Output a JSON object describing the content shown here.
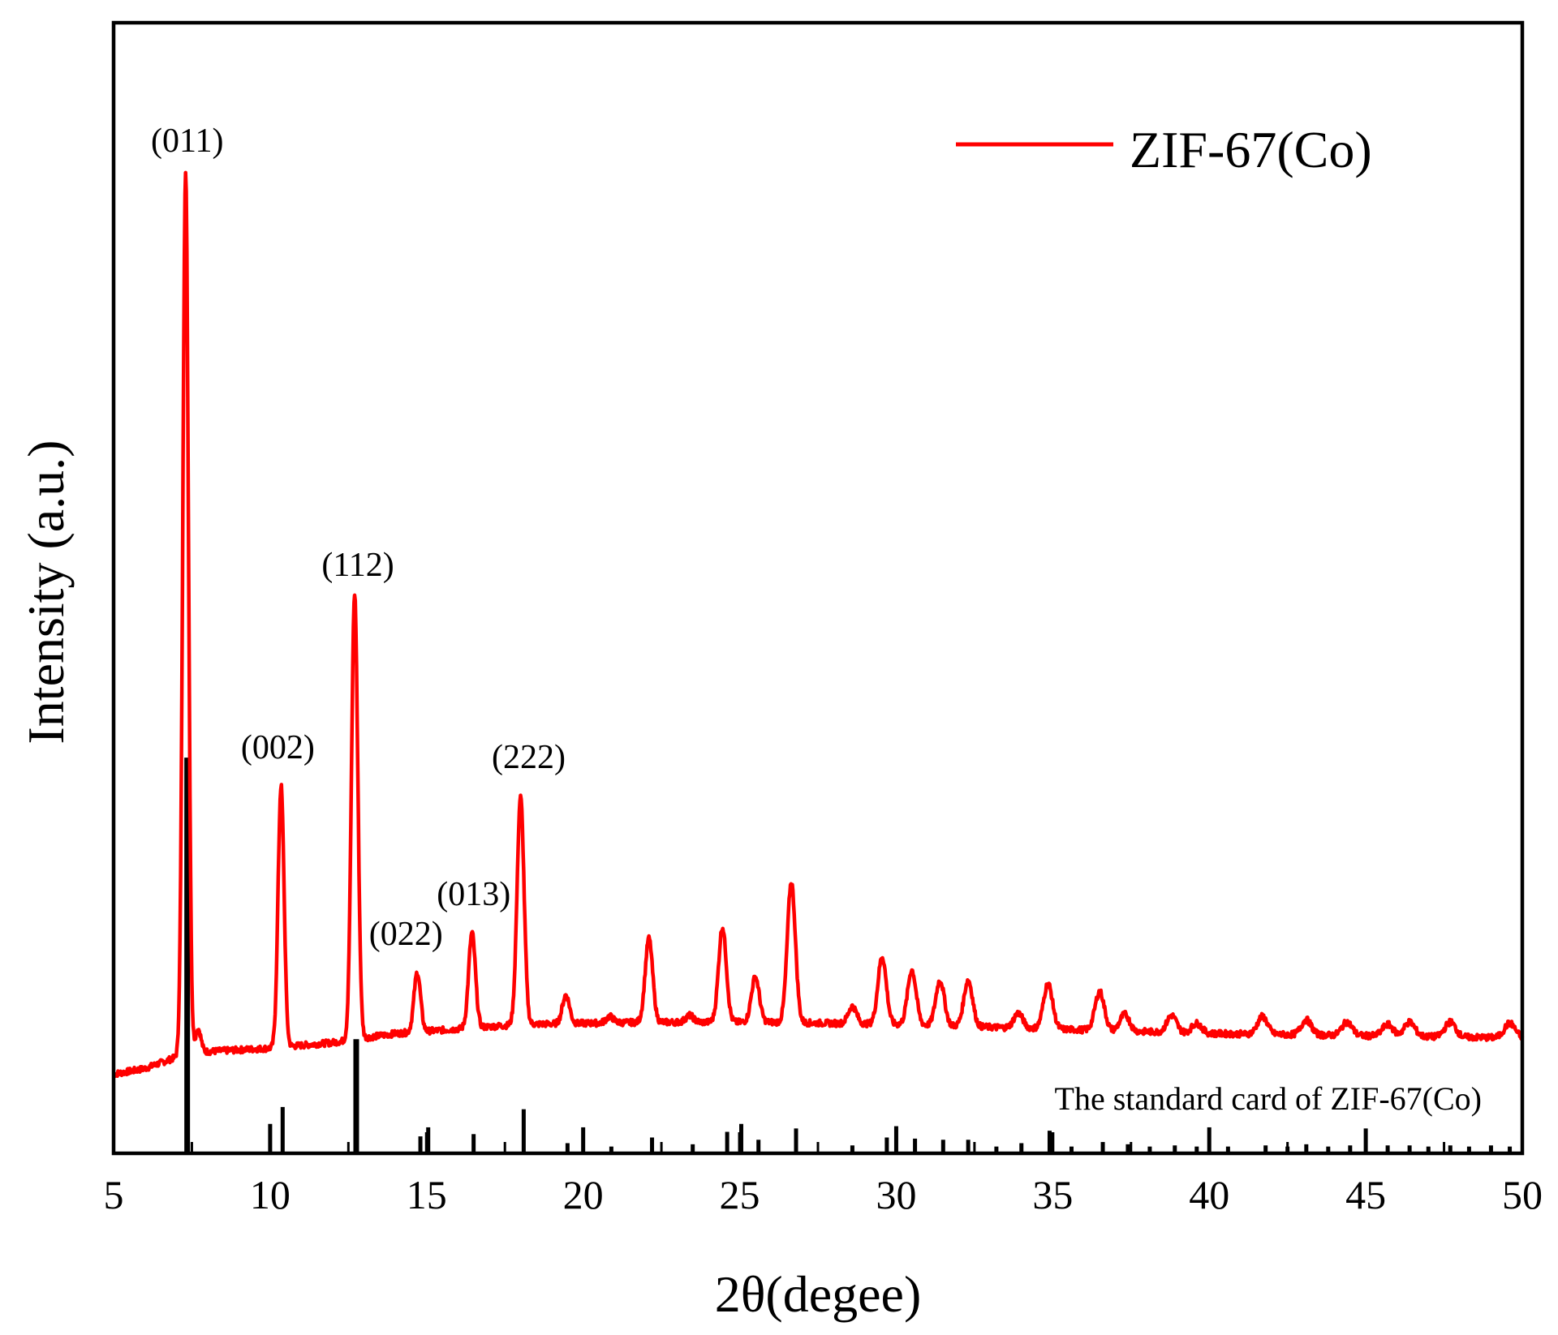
{
  "chart_data": {
    "type": "line",
    "title": "",
    "xlabel": "2θ(degee)",
    "ylabel": "Intensity (a.u.)",
    "xlim": [
      5,
      50
    ],
    "ylim": [
      0,
      100
    ],
    "xticks": [
      "5",
      "10",
      "15",
      "20",
      "25",
      "30",
      "35",
      "40",
      "45",
      "50"
    ],
    "yticks_shown": false,
    "legend": {
      "position": "top-right",
      "entries": [
        {
          "label": "ZIF-67(Co)",
          "color": "#ff0000"
        }
      ]
    },
    "series": [
      {
        "name": "ZIF-67(Co)",
        "color": "#ff0000",
        "baseline": [
          [
            5,
            7.0
          ],
          [
            6,
            7.5
          ],
          [
            7,
            8.5
          ],
          [
            8,
            9.0
          ],
          [
            10,
            9.3
          ],
          [
            12,
            9.8
          ],
          [
            14,
            10.6
          ],
          [
            18,
            11.4
          ],
          [
            22,
            11.6
          ],
          [
            26,
            11.6
          ],
          [
            30,
            11.4
          ],
          [
            35,
            11.0
          ],
          [
            40,
            10.6
          ],
          [
            45,
            10.4
          ],
          [
            50,
            10.2
          ]
        ],
        "peaks": [
          {
            "x": 7.3,
            "y": 87.0,
            "hkl": "(011)"
          },
          {
            "x": 7.7,
            "y": 11.0
          },
          {
            "x": 10.35,
            "y": 32.5,
            "hkl": "(002)"
          },
          {
            "x": 12.7,
            "y": 49.5,
            "hkl": "(112)"
          },
          {
            "x": 14.7,
            "y": 16.0,
            "hkl": "(022)"
          },
          {
            "x": 16.45,
            "y": 19.5,
            "hkl": "(013)"
          },
          {
            "x": 18.0,
            "y": 31.5,
            "hkl": "(222)"
          },
          {
            "x": 19.45,
            "y": 14.0
          },
          {
            "x": 20.85,
            "y": 12.1
          },
          {
            "x": 22.1,
            "y": 19.0
          },
          {
            "x": 23.4,
            "y": 12.2
          },
          {
            "x": 24.45,
            "y": 20.0
          },
          {
            "x": 25.5,
            "y": 15.6
          },
          {
            "x": 26.65,
            "y": 24.0
          },
          {
            "x": 28.6,
            "y": 13.0
          },
          {
            "x": 29.55,
            "y": 17.4
          },
          {
            "x": 30.5,
            "y": 16.2
          },
          {
            "x": 31.4,
            "y": 15.3
          },
          {
            "x": 32.3,
            "y": 15.3
          },
          {
            "x": 33.9,
            "y": 12.4
          },
          {
            "x": 34.85,
            "y": 15.0
          },
          {
            "x": 36.5,
            "y": 14.3
          },
          {
            "x": 37.3,
            "y": 12.3
          },
          {
            "x": 38.8,
            "y": 12.2
          },
          {
            "x": 39.6,
            "y": 11.5
          },
          {
            "x": 41.7,
            "y": 12.1
          },
          {
            "x": 43.1,
            "y": 11.8
          },
          {
            "x": 44.4,
            "y": 11.6
          },
          {
            "x": 45.7,
            "y": 11.4
          },
          {
            "x": 46.4,
            "y": 11.6
          },
          {
            "x": 47.7,
            "y": 11.6
          },
          {
            "x": 49.6,
            "y": 11.5
          }
        ]
      }
    ],
    "reference_card": {
      "name": "The standard card of ZIF-67(Co)",
      "color": "#000000",
      "sticks": [
        {
          "x": 7.35,
          "h": 35.0
        },
        {
          "x": 10.0,
          "h": 2.6
        },
        {
          "x": 10.4,
          "h": 4.1
        },
        {
          "x": 12.75,
          "h": 10.1
        },
        {
          "x": 14.8,
          "h": 1.5
        },
        {
          "x": 15.05,
          "h": 2.3
        },
        {
          "x": 16.5,
          "h": 1.7
        },
        {
          "x": 18.1,
          "h": 3.9
        },
        {
          "x": 19.5,
          "h": 0.9
        },
        {
          "x": 20.0,
          "h": 2.3
        },
        {
          "x": 20.9,
          "h": 0.6
        },
        {
          "x": 22.2,
          "h": 1.4
        },
        {
          "x": 23.5,
          "h": 0.8
        },
        {
          "x": 24.6,
          "h": 1.9
        },
        {
          "x": 25.05,
          "h": 2.6
        },
        {
          "x": 25.6,
          "h": 1.2
        },
        {
          "x": 26.8,
          "h": 2.2
        },
        {
          "x": 28.6,
          "h": 0.7
        },
        {
          "x": 29.7,
          "h": 1.4
        },
        {
          "x": 30.0,
          "h": 2.4
        },
        {
          "x": 30.6,
          "h": 1.3
        },
        {
          "x": 31.5,
          "h": 1.2
        },
        {
          "x": 32.3,
          "h": 1.2
        },
        {
          "x": 33.2,
          "h": 0.6
        },
        {
          "x": 34.0,
          "h": 0.9
        },
        {
          "x": 34.9,
          "h": 2.0
        },
        {
          "x": 35.6,
          "h": 0.6
        },
        {
          "x": 36.6,
          "h": 1.0
        },
        {
          "x": 37.4,
          "h": 0.8
        },
        {
          "x": 38.1,
          "h": 0.6
        },
        {
          "x": 38.9,
          "h": 0.7
        },
        {
          "x": 39.6,
          "h": 0.6
        },
        {
          "x": 40.0,
          "h": 2.3
        },
        {
          "x": 40.6,
          "h": 0.6
        },
        {
          "x": 41.8,
          "h": 0.7
        },
        {
          "x": 42.5,
          "h": 0.6
        },
        {
          "x": 43.1,
          "h": 0.8
        },
        {
          "x": 43.8,
          "h": 0.6
        },
        {
          "x": 44.5,
          "h": 0.7
        },
        {
          "x": 45.0,
          "h": 2.2
        },
        {
          "x": 45.7,
          "h": 0.7
        },
        {
          "x": 46.4,
          "h": 0.7
        },
        {
          "x": 47.0,
          "h": 0.6
        },
        {
          "x": 47.7,
          "h": 0.7
        },
        {
          "x": 48.3,
          "h": 0.6
        },
        {
          "x": 49.0,
          "h": 0.7
        },
        {
          "x": 49.6,
          "h": 0.6
        }
      ]
    }
  }
}
